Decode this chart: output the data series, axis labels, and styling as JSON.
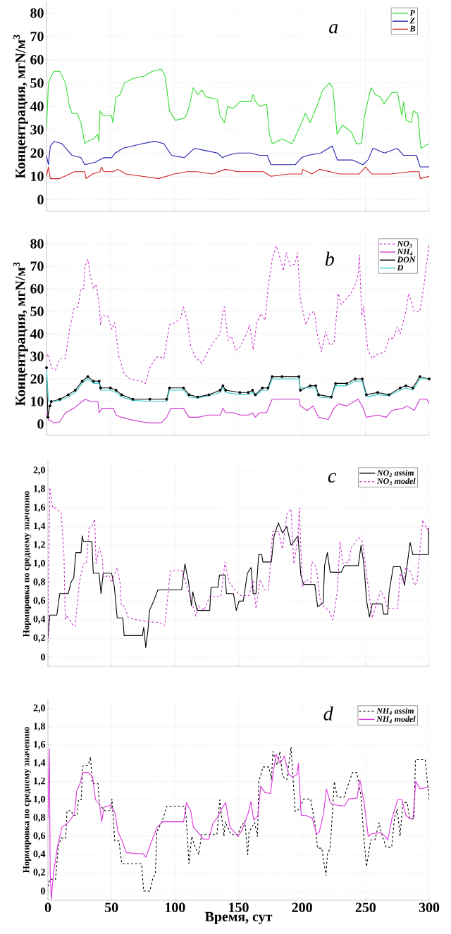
{
  "chart_data": [
    {
      "type": "line",
      "ylabel": "Концентрация, мгN/м$^{3}$",
      "annotations": [
        "a"
      ],
      "xlim": [
        0,
        300
      ],
      "ylim": [
        -5,
        85
      ],
      "xticks": [
        0,
        50,
        100,
        150,
        200,
        250,
        300
      ],
      "yticks": [
        0,
        10,
        20,
        30,
        40,
        50,
        60,
        70,
        80
      ],
      "tick_labels": "y",
      "grid": true,
      "legend": "top right",
      "series": [
        {
          "name": "P",
          "color": "#33dd33",
          "x": [
            0,
            1.5,
            3.7,
            6,
            10.4,
            15,
            18,
            20,
            24,
            27,
            30,
            32,
            37,
            40,
            41,
            42,
            44.6,
            51,
            52,
            54.5,
            57.8,
            61,
            68,
            76.6,
            83,
            90,
            93,
            96.5,
            101,
            108.6,
            112,
            115,
            118.5,
            122,
            125,
            134,
            136,
            139.5,
            142,
            146,
            151.7,
            160,
            162,
            164,
            167,
            172.6,
            174.8,
            177,
            184.8,
            192.5,
            200,
            203,
            206.6,
            212,
            216.5,
            222,
            224.5,
            227.8,
            232,
            239,
            243,
            247,
            249,
            251,
            254.5,
            257.8,
            262,
            264.5,
            271,
            275,
            278.6,
            280,
            282,
            286,
            287.5,
            291,
            293.5,
            300
          ],
          "values": [
            30,
            50,
            53,
            55,
            55,
            50,
            40,
            37,
            37,
            33,
            24,
            25,
            26,
            28,
            25,
            38,
            36,
            36,
            33,
            44,
            45,
            50,
            52,
            53,
            55,
            56,
            53,
            38,
            34,
            35,
            40,
            48,
            45,
            47,
            44,
            43,
            36,
            33,
            40,
            39,
            42,
            42,
            45,
            42,
            40,
            41,
            28,
            24,
            26,
            24,
            33,
            37,
            33,
            40,
            47,
            50,
            48,
            28,
            32,
            29,
            24,
            24,
            35,
            40,
            48,
            45,
            44,
            41,
            46,
            46,
            36,
            42,
            34,
            33,
            38,
            37,
            22,
            24
          ]
        },
        {
          "name": "Z",
          "color": "#2222b0",
          "x": [
            0,
            1.5,
            3,
            6,
            12,
            20,
            27,
            30,
            38,
            45,
            51,
            54,
            60,
            75,
            85,
            92,
            98,
            108,
            112,
            116,
            125,
            134,
            138,
            142,
            150,
            160,
            167,
            173,
            176,
            195,
            200,
            205,
            215,
            224,
            228,
            240,
            248,
            252,
            256,
            265,
            275,
            280,
            290,
            293,
            300
          ],
          "values": [
            19,
            15,
            23,
            25,
            24,
            19,
            18,
            15,
            16,
            18,
            18,
            20,
            22,
            24,
            25,
            24,
            19,
            18,
            20,
            22,
            21,
            20,
            18,
            19,
            20,
            20,
            19,
            19,
            15,
            15,
            18,
            19,
            20,
            23,
            17,
            17,
            15,
            17,
            22,
            20,
            22,
            19,
            19,
            14,
            14
          ]
        },
        {
          "name": "B",
          "color": "#d02020",
          "x": [
            0,
            1.5,
            3,
            10,
            18,
            22,
            30,
            31,
            36,
            42,
            43,
            45,
            52,
            56,
            62,
            75,
            88,
            100,
            110,
            118,
            130,
            140,
            150,
            170,
            176,
            190,
            200,
            201,
            208,
            214,
            230,
            245,
            250,
            255,
            270,
            285,
            292,
            293,
            300
          ],
          "values": [
            10,
            14,
            9,
            9,
            11,
            12,
            12,
            9,
            11,
            12,
            14,
            12,
            12,
            13,
            11,
            10,
            9,
            11,
            12,
            12,
            11,
            13,
            12,
            12,
            10,
            11,
            11,
            13,
            11,
            13,
            11,
            11,
            14,
            11,
            11,
            12,
            12,
            9,
            10
          ]
        }
      ]
    },
    {
      "type": "line",
      "ylabel": "Концентрация, мгN/м$^{3}$",
      "annotations": [
        "b"
      ],
      "xlim": [
        0,
        300
      ],
      "ylim": [
        -5,
        85
      ],
      "xticks": [
        0,
        50,
        100,
        150,
        200,
        250,
        300
      ],
      "yticks": [
        0,
        10,
        20,
        30,
        40,
        50,
        60,
        70,
        80
      ],
      "tick_labels": "y",
      "grid": true,
      "legend": "top right",
      "series": [
        {
          "name": "NO$_{3}$",
          "color": "#cc33cc",
          "line_style": "dashed",
          "x": [
            0,
            1.5,
            3.8,
            7,
            10.4,
            14.8,
            18.1,
            21.4,
            24.7,
            26.9,
            29.1,
            30.2,
            32.4,
            34.6,
            36.8,
            39,
            41.3,
            42.4,
            43.5,
            47.9,
            51.2,
            53.4,
            56.7,
            61.1,
            65.5,
            74.3,
            77.7,
            81,
            85.4,
            87.6,
            92,
            96.4,
            100.8,
            105.2,
            107.4,
            110.7,
            112.9,
            116.3,
            121.8,
            127.3,
            131.7,
            136.1,
            138.3,
            139.4,
            142.3,
            144.9,
            148.2,
            151.6,
            156,
            159.3,
            162.1,
            164.8,
            168.2,
            171.4,
            173.6,
            176.9,
            180.2,
            183.5,
            185.7,
            188,
            191.3,
            194.6,
            196.8,
            199,
            203.4,
            206.7,
            210,
            212.2,
            215.5,
            218.8,
            222.1,
            225.5,
            228.8,
            231,
            234.3,
            238.7,
            242,
            244.2,
            245.3,
            247.1,
            248.6,
            251.9,
            255.2,
            259.6,
            265.2,
            268.5,
            271.8,
            275.1,
            277.3,
            281.7,
            283.9,
            288.3,
            292.7,
            296,
            300
          ],
          "values": [
            30,
            31,
            25,
            24,
            29,
            29,
            42,
            51,
            52,
            60,
            60,
            70,
            73,
            65,
            60,
            62,
            53,
            44,
            48,
            48,
            42,
            45,
            30,
            22,
            20,
            19,
            18,
            25,
            29,
            30,
            29,
            44,
            45,
            47,
            52,
            45,
            35,
            30,
            27,
            33,
            37,
            40,
            50,
            52,
            37,
            39,
            33,
            34,
            39,
            44,
            33,
            45,
            49,
            46,
            60,
            73,
            79,
            73,
            68,
            76,
            70,
            71,
            76,
            55,
            44,
            49,
            50,
            40,
            32,
            41,
            35,
            36,
            58,
            53,
            55,
            58,
            62,
            66,
            75,
            48,
            52,
            33,
            29,
            31,
            32,
            38,
            38,
            43,
            40,
            50,
            58,
            50,
            50,
            62,
            80
          ]
        },
        {
          "name": "NH$_{4}$",
          "color": "#cc33cc",
          "x": [
            0,
            1.5,
            6,
            10.4,
            14.8,
            21.4,
            25.8,
            30.2,
            34.6,
            40.2,
            41.3,
            43.5,
            52.3,
            54.5,
            58.9,
            65.5,
            74.3,
            81,
            89.8,
            94.2,
            97.5,
            107.4,
            111.8,
            118.5,
            127.3,
            136.1,
            138.3,
            140.5,
            147.1,
            151.6,
            158.2,
            161.5,
            163.7,
            167,
            172.5,
            176.9,
            184.6,
            197.9,
            199,
            204.5,
            208.9,
            213.3,
            221,
            225.5,
            228.8,
            235.4,
            244.2,
            247.5,
            250.8,
            259.6,
            266.3,
            270.7,
            279.5,
            282.8,
            288.3,
            292.7,
            298.2,
            300
          ],
          "values": [
            5,
            2,
            0.5,
            1,
            5,
            7,
            9,
            11,
            10,
            10,
            5,
            7,
            7,
            4,
            3,
            2,
            1,
            0.5,
            0.5,
            3,
            7,
            7,
            3,
            3,
            4,
            4,
            7,
            5,
            5,
            4,
            4,
            5,
            3,
            5,
            5,
            11,
            11,
            11,
            8,
            6,
            8,
            3,
            2,
            7,
            9,
            8,
            11,
            8,
            3,
            4,
            3,
            6,
            7,
            8,
            6,
            11,
            11,
            9
          ]
        },
        {
          "name": "DON",
          "color": "#000000",
          "marker": "circle",
          "x": [
            0,
            1.1,
            2.6,
            3.8,
            10.4,
            17,
            22.5,
            28,
            32.4,
            36.8,
            41.3,
            42.4,
            50.1,
            54.5,
            58.9,
            67.7,
            81,
            94.2,
            96.4,
            107.4,
            111.8,
            118.5,
            127.3,
            136.1,
            138.3,
            140.5,
            151.6,
            158.2,
            161.5,
            163.7,
            169.2,
            173.6,
            176.9,
            184.6,
            197.9,
            199,
            206.7,
            211.1,
            213.3,
            223.3,
            226.6,
            235.4,
            242,
            247.5,
            250.8,
            259.6,
            268.5,
            277.3,
            281.7,
            287.2,
            292.7,
            300
          ],
          "values": [
            25,
            3,
            8,
            10,
            11,
            13,
            15,
            19,
            21,
            19,
            19,
            16,
            16,
            15,
            13,
            11,
            11,
            11,
            16,
            16,
            13,
            12,
            13,
            15,
            17,
            15,
            14,
            14,
            15,
            13,
            16,
            16,
            21,
            21,
            21,
            15,
            17,
            17,
            13,
            12,
            18,
            18,
            20,
            20,
            13,
            14,
            13,
            16,
            17,
            16,
            21,
            20
          ]
        },
        {
          "name": "D",
          "color": "#33cccc",
          "x": [
            0,
            1.5,
            3.8,
            10.4,
            17,
            22.5,
            28,
            32.4,
            36.8,
            41.3,
            42.4,
            50.1,
            54.5,
            58.9,
            67.7,
            81,
            94.2,
            96.4,
            107.4,
            111.8,
            118.5,
            127.3,
            136.1,
            138.3,
            140.5,
            151.6,
            158.2,
            161.5,
            163.7,
            169.2,
            173.6,
            176.9,
            184.6,
            197.9,
            199,
            206.7,
            211.1,
            213.3,
            223.3,
            226.6,
            235.4,
            242,
            247.5,
            250.8,
            259.6,
            268.5,
            277.3,
            281.7,
            287.2,
            292.7,
            300
          ],
          "values": [
            25,
            10,
            10,
            10.5,
            12,
            14,
            18,
            20,
            18,
            18,
            15,
            15,
            14,
            12,
            10.5,
            10,
            10,
            15,
            15,
            12,
            11.5,
            12.5,
            14,
            16,
            14,
            13,
            13,
            14,
            12.5,
            15,
            15,
            20,
            20,
            20,
            16,
            16,
            16,
            12,
            11.5,
            17,
            17,
            19,
            19,
            12,
            13,
            12.5,
            15,
            16,
            15,
            20,
            20
          ]
        }
      ]
    },
    {
      "type": "line",
      "ylabel": "Нормировка по среднему значению",
      "annotations": [
        "c"
      ],
      "xlim": [
        0,
        300
      ],
      "ylim": [
        -0.1,
        2.1
      ],
      "xticks": [
        0,
        50,
        100,
        150,
        200,
        250,
        300
      ],
      "yticks": [
        0,
        {
          "value": 0.2,
          "label": "0,2"
        },
        {
          "value": 0.4,
          "label": "0,4"
        },
        {
          "value": 0.6,
          "label": "0,6"
        },
        {
          "value": 0.8,
          "label": "0,8"
        },
        {
          "value": 1.0,
          "label": "1,0"
        },
        {
          "value": 1.2,
          "label": "1,2"
        },
        {
          "value": 1.4,
          "label": "1,4"
        },
        {
          "value": 1.6,
          "label": "1,6"
        },
        {
          "value": 1.8,
          "label": "1,8"
        },
        {
          "value": 2.0,
          "label": "2,0"
        }
      ],
      "tick_labels": "y",
      "grid": true,
      "legend": "top right",
      "series": [
        {
          "name": "NO$_{3}$ assim",
          "color": "#000000",
          "x": [
            0,
            1.5,
            7,
            9.3,
            16,
            18.1,
            20.3,
            22,
            26,
            27,
            28,
            34.6,
            35.7,
            40.2,
            41.8,
            43.5,
            50.1,
            52.3,
            54.5,
            58.9,
            60,
            74.3,
            75.4,
            77,
            78.8,
            79.9,
            83.2,
            86.5,
            105.2,
            107.8,
            110.7,
            112.9,
            114,
            117.4,
            127.3,
            128.4,
            133.9,
            135,
            139.4,
            140.5,
            146,
            148.2,
            150.4,
            153.7,
            157,
            159.9,
            161.5,
            163.7,
            165.9,
            168.2,
            169.2,
            175.8,
            178,
            181.3,
            184.6,
            188,
            191.3,
            196.8,
            199,
            201.2,
            210,
            212.2,
            216.6,
            217.7,
            219.9,
            222.1,
            230.9,
            233.2,
            244.2,
            246.4,
            248.6,
            250.8,
            253,
            255.2,
            262.9,
            264.1,
            267.4,
            268.5,
            271.8,
            277.3,
            280.6,
            282.8,
            285,
            287.2,
            299.4,
            299.7,
            300
          ],
          "values": [
            0.2,
            0.45,
            0.45,
            0.68,
            0.68,
            0.8,
            0.85,
            1.12,
            1.12,
            1.3,
            1.24,
            1.24,
            0.9,
            0.9,
            0.68,
            0.9,
            0.9,
            0.75,
            0.42,
            0.42,
            0.23,
            0.23,
            0.32,
            0.1,
            0.3,
            0.5,
            0.6,
            0.72,
            0.72,
            1.0,
            0.8,
            0.55,
            0.7,
            0.5,
            0.5,
            0.75,
            0.75,
            0.88,
            0.88,
            0.68,
            0.68,
            0.5,
            0.6,
            0.6,
            0.9,
            0.96,
            0.68,
            0.68,
            1.1,
            1.1,
            1.02,
            1.02,
            1.3,
            1.44,
            1.33,
            1.4,
            1.2,
            1.3,
            0.88,
            0.78,
            0.78,
            0.54,
            0.58,
            0.98,
            1.12,
            0.91,
            0.91,
            0.98,
            0.98,
            1.2,
            1.0,
            0.6,
            0.43,
            0.57,
            0.57,
            0.46,
            0.46,
            0.7,
            0.97,
            0.97,
            0.77,
            1.0,
            1.23,
            1.1,
            1.1,
            1.38,
            1.28
          ]
        },
        {
          "name": "NO$_{3}$ model",
          "color": "#cc33cc",
          "line_style": "dashed",
          "x": [
            0,
            1.5,
            3.8,
            6,
            10.4,
            12.6,
            13.7,
            14.8,
            19.2,
            21.4,
            24.7,
            28,
            30.2,
            32.4,
            34.6,
            36.8,
            37.9,
            40.2,
            42.4,
            43.9,
            47.9,
            50.1,
            54.5,
            56.7,
            57.8,
            60,
            63.3,
            69.9,
            78.8,
            87.6,
            92,
            96.4,
            105.2,
            109.6,
            114,
            116.3,
            118.5,
            122.9,
            127.3,
            136.1,
            139.4,
            142.7,
            147.1,
            151.6,
            158.2,
            161.5,
            163.7,
            167,
            170.3,
            173.6,
            176.9,
            181.3,
            184.6,
            188,
            191.3,
            193.5,
            196.8,
            197.9,
            200.1,
            203.4,
            206.7,
            207.8,
            211.1,
            214.4,
            217.7,
            221,
            224.4,
            227.7,
            229.9,
            232.1,
            236.5,
            238.7,
            244.2,
            247.5,
            250.8,
            255.2,
            258.5,
            261.9,
            265.2,
            267.4,
            275.1,
            277.3,
            279.5,
            281.7,
            286.1,
            288.3,
            290.5,
            294.9,
            298.2,
            300
          ],
          "values": [
            0.16,
            1.82,
            1.6,
            1.6,
            1.55,
            1.1,
            0.4,
            0.45,
            0.35,
            0.33,
            0.8,
            1.0,
            1.0,
            1.38,
            1.4,
            1.48,
            1.0,
            1.17,
            1.1,
            0.85,
            0.88,
            0.8,
            0.96,
            0.8,
            0.55,
            0.55,
            0.42,
            0.4,
            0.38,
            0.37,
            0.34,
            0.93,
            0.93,
            0.75,
            0.55,
            0.44,
            0.55,
            0.5,
            0.65,
            0.65,
            1.02,
            0.8,
            0.72,
            0.66,
            0.66,
            0.82,
            0.52,
            0.83,
            0.72,
            0.72,
            1.35,
            1.35,
            1.16,
            1.53,
            1.59,
            1.0,
            1.28,
            1.6,
            0.75,
            0.83,
            0.8,
            1.02,
            0.97,
            0.6,
            0.53,
            0.5,
            0.4,
            0.7,
            1.24,
            1.0,
            1.02,
            1.17,
            1.28,
            1.24,
            0.88,
            0.42,
            0.57,
            0.71,
            0.62,
            0.52,
            0.52,
            0.9,
            0.8,
            0.97,
            0.9,
            0.77,
            0.8,
            1.47,
            1.37,
            1.4
          ]
        }
      ]
    },
    {
      "type": "line",
      "ylabel": "Нормировка по среднему значению",
      "xlabel": "Время, сут",
      "annotations": [
        "d"
      ],
      "xlim": [
        0,
        300
      ],
      "ylim": [
        -0.1,
        2.1
      ],
      "xticks": [
        0,
        50,
        100,
        150,
        200,
        250,
        300
      ],
      "yticks": [
        0,
        {
          "value": 0.2,
          "label": "0,2"
        },
        {
          "value": 0.4,
          "label": "0,4"
        },
        {
          "value": 0.6,
          "label": "0,6"
        },
        {
          "value": 0.8,
          "label": "0,8"
        },
        {
          "value": 1.0,
          "label": "1,0"
        },
        {
          "value": 1.2,
          "label": "1,2"
        },
        {
          "value": 1.4,
          "label": "1,4"
        },
        {
          "value": 1.6,
          "label": "1,6"
        },
        {
          "value": 1.8,
          "label": "1,8"
        },
        {
          "value": 2.0,
          "label": "2,0"
        }
      ],
      "grid": true,
      "legend": "top right",
      "series": [
        {
          "name": "NH$_{4}$ assim",
          "color": "#000000",
          "line_style": "dashed",
          "x": [
            0,
            1.5,
            6,
            8.2,
            10.4,
            14,
            15,
            18.5,
            19.6,
            22.9,
            24,
            26.2,
            27.3,
            31.7,
            33.5,
            35,
            39.4,
            40.5,
            44.9,
            49.3,
            50.4,
            52.6,
            55.9,
            58.1,
            73.6,
            75.4,
            80.2,
            82.4,
            84.6,
            85.7,
            90.1,
            93.4,
            107.7,
            108.8,
            111,
            113.2,
            115.4,
            118.7,
            120.9,
            133,
            135.2,
            138.5,
            139.6,
            144,
            149.5,
            151.7,
            155,
            157.2,
            158.3,
            162.7,
            164.9,
            166,
            169.3,
            173.7,
            175.9,
            177,
            180.3,
            182.5,
            184.7,
            188,
            191.3,
            194.6,
            197.9,
            201.2,
            206.7,
            210,
            212.2,
            215.5,
            218.8,
            219.9,
            222.1,
            225.4,
            227.6,
            233.1,
            236.4,
            239.7,
            243,
            246.3,
            248.5,
            250.7,
            254,
            257.3,
            260.6,
            262.8,
            266.1,
            270.5,
            272.7,
            274.9,
            277.1,
            279.3,
            282.6,
            284.8,
            288.1,
            289.2,
            296.9,
            300
          ],
          "values": [
            0.05,
            0.13,
            0.13,
            0.5,
            0.58,
            0.58,
            0.88,
            0.88,
            0.83,
            0.83,
            1.0,
            1.0,
            1.37,
            1.38,
            1.47,
            1.18,
            1.18,
            0.95,
            0.88,
            0.88,
            1.01,
            0.55,
            0.55,
            0.3,
            0.3,
            0,
            0,
            0.13,
            0.2,
            0.65,
            0.77,
            0.93,
            0.93,
            0.8,
            0.3,
            0.6,
            0.5,
            0.4,
            0.62,
            0.62,
            1.0,
            0.6,
            0.76,
            0.62,
            0.62,
            0.7,
            0.77,
            0.4,
            0.65,
            0.75,
            0.6,
            1.2,
            1.36,
            1.36,
            1.22,
            1.53,
            1.38,
            1.53,
            1.26,
            1.22,
            1.58,
            0.87,
            0.9,
            1.01,
            1.01,
            0.75,
            0.47,
            0.47,
            0.17,
            0.4,
            0.47,
            1.2,
            1.03,
            1.03,
            1.17,
            1.3,
            1.3,
            1.05,
            0.6,
            0.27,
            0.56,
            0.56,
            0.75,
            0.62,
            0.48,
            0.48,
            0.8,
            0.9,
            0.6,
            0.97,
            0.97,
            0.79,
            0.79,
            1.44,
            1.44,
            1.0
          ]
        },
        {
          "name": "NH$_{4}$ model",
          "color": "#dd33dd",
          "x": [
            0,
            1.1,
            1.8,
            2.6,
            4.4,
            7.7,
            11,
            14.3,
            17.6,
            20.9,
            22.7,
            25.3,
            27.5,
            31.9,
            35.2,
            37.4,
            40.7,
            42.3,
            44.1,
            49.6,
            52.9,
            55.1,
            58.4,
            61.7,
            72.7,
            74.9,
            77.1,
            80.4,
            85.9,
            90.3,
            95.8,
            106.8,
            109,
            112.3,
            114.5,
            117.8,
            122.2,
            126.7,
            130,
            133.3,
            136.6,
            139.9,
            143.2,
            146.5,
            149.8,
            153.1,
            157.5,
            159.7,
            161.9,
            165.2,
            167.4,
            170.7,
            175.1,
            177.3,
            179.5,
            182.8,
            186.1,
            189.4,
            192.7,
            196,
            197.1,
            199.3,
            202.6,
            208.1,
            211.4,
            213.6,
            216.9,
            219.1,
            222.4,
            227.9,
            233.4,
            236.7,
            243.3,
            245.5,
            248.8,
            252.1,
            255.4,
            262,
            265.3,
            267.5,
            270.8,
            275.2,
            278.5,
            281.8,
            285.1,
            287.3,
            289.5,
            292.8,
            300
          ],
          "values": [
            0.8,
            1.56,
            0.2,
            -0.09,
            0.2,
            0.5,
            0.7,
            0.73,
            0.78,
            0.85,
            1.1,
            1.18,
            1.3,
            1.3,
            1.25,
            1.0,
            0.95,
            0.76,
            0.92,
            0.94,
            0.85,
            0.65,
            0.55,
            0.42,
            0.41,
            0.41,
            0.37,
            0.5,
            0.7,
            0.76,
            0.76,
            0.76,
            0.97,
            0.88,
            0.7,
            0.65,
            0.57,
            0.57,
            0.75,
            0.8,
            0.9,
            0.97,
            0.7,
            0.65,
            0.6,
            0.68,
            0.85,
            0.98,
            0.78,
            0.82,
            1.15,
            1.08,
            1.07,
            1.3,
            1.5,
            1.4,
            1.48,
            1.28,
            1.25,
            1.28,
            1.4,
            0.83,
            0.83,
            0.8,
            0.62,
            0.65,
            0.85,
            1.12,
            0.96,
            0.94,
            0.93,
            1.01,
            1.02,
            1.22,
            0.97,
            0.6,
            0.63,
            0.64,
            0.6,
            0.56,
            0.8,
            1.0,
            1.0,
            0.83,
            0.79,
            0.8,
            1.2,
            1.12,
            1.14
          ]
        }
      ]
    }
  ]
}
